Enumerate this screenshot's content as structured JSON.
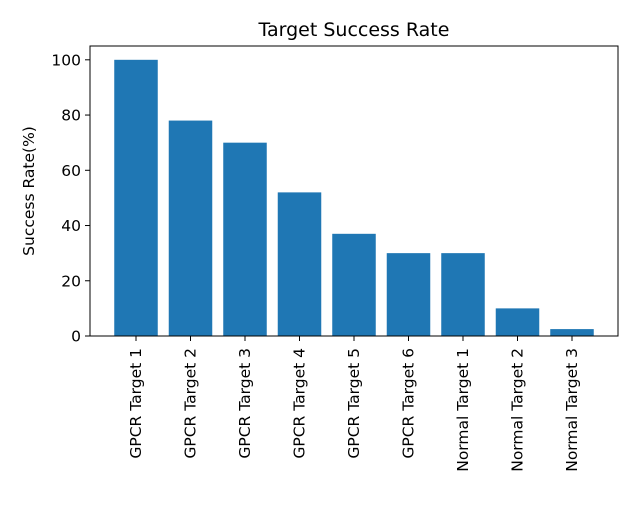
{
  "chart_data": {
    "type": "bar",
    "title": "Target Success Rate",
    "xlabel": "",
    "ylabel": "Success Rate(%)",
    "ylim": [
      0,
      105
    ],
    "yticks": [
      0,
      20,
      40,
      60,
      80,
      100
    ],
    "categories": [
      "GPCR Target 1",
      "GPCR Target 2",
      "GPCR Target 3",
      "GPCR Target 4",
      "GPCR Target 5",
      "GPCR Target 6",
      "Normal Target 1",
      "Normal Target 2",
      "Normal Target 3"
    ],
    "values": [
      100,
      78,
      70,
      52,
      37,
      30,
      30,
      10,
      2.5
    ],
    "bar_color": "#1f77b4",
    "grid": false,
    "legend": "none"
  }
}
